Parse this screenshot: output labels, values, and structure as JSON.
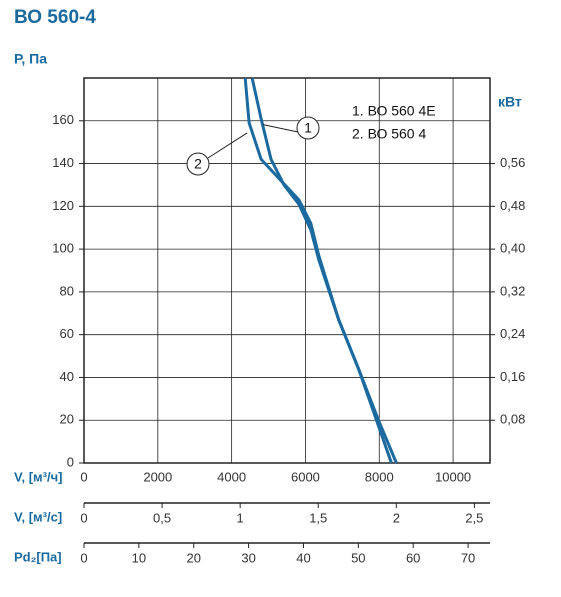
{
  "chart_data": {
    "type": "line",
    "title": "ВО 560-4",
    "y_label": "Р, Па",
    "y2_label": "кВт",
    "x_label": "V, [м³/ч]",
    "xlim": [
      0,
      11000
    ],
    "xticks": [
      0,
      2000,
      4000,
      6000,
      8000,
      10000
    ],
    "ylim": [
      0,
      180
    ],
    "yticks": [
      0,
      20,
      40,
      60,
      80,
      100,
      120,
      140,
      160
    ],
    "y2lim": [
      0,
      0.72
    ],
    "y2ticks": [
      {
        "value": 0.08,
        "label": "0,08"
      },
      {
        "value": 0.16,
        "label": "0,16"
      },
      {
        "value": 0.24,
        "label": "0,24"
      },
      {
        "value": 0.32,
        "label": "0,32"
      },
      {
        "value": 0.4,
        "label": "0,40"
      },
      {
        "value": 0.48,
        "label": "0,48"
      },
      {
        "value": 0.56,
        "label": "0,56"
      }
    ],
    "grid": true,
    "series": [
      {
        "name": "1. ВО 560 4Е",
        "marker": "1",
        "color": "#1a6aa0",
        "x": [
          4555,
          4798,
          5067,
          5418,
          5822,
          6146,
          6361,
          6900,
          7439,
          7925,
          8329
        ],
        "values": [
          180,
          161,
          142,
          130,
          121,
          109,
          95,
          67,
          44,
          20,
          0
        ]
      },
      {
        "name": "2. ВО 560 4",
        "marker": "2",
        "color": "#1a6aa0",
        "x": [
          4367,
          4474,
          4798,
          5283,
          5822,
          6146,
          6361,
          6900,
          7439,
          7978,
          8464
        ],
        "values": [
          180,
          159,
          142,
          133,
          123,
          112,
          97,
          67,
          44,
          20,
          0
        ]
      }
    ],
    "x2_axis": {
      "label": "V, [м³/с]",
      "lim": [
        0,
        2.6
      ],
      "ticks": [
        0,
        {
          "value": 0.5,
          "label": "0,5"
        },
        1,
        {
          "value": 1.5,
          "label": "1,5"
        },
        2,
        {
          "value": 2.5,
          "label": "2,5"
        }
      ]
    },
    "x3_axis": {
      "label": "Pd₂[Па]",
      "lim": [
        0,
        74
      ],
      "ticks": [
        0,
        10,
        20,
        30,
        40,
        50,
        60,
        70
      ]
    }
  }
}
